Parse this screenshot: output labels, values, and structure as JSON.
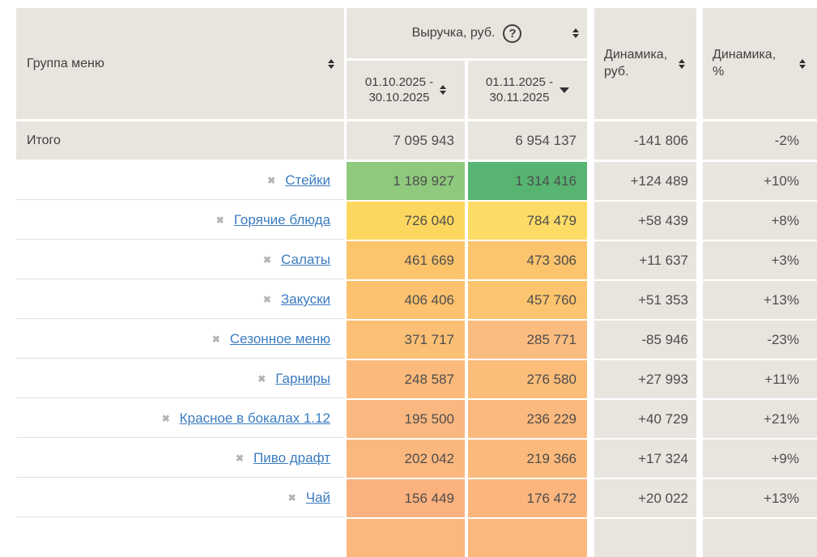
{
  "colors": {
    "header_bg": "#e8e5df",
    "link": "#3b7cc0",
    "value_text": "#4d4d4d",
    "header_text": "#3f3f3f",
    "remove_icon": "#b5b5b5",
    "sort_icon": "#2f2f2f",
    "row_separator": "#e2e0da"
  },
  "header": {
    "group_label": "Группа меню",
    "revenue": {
      "label": "Выручка, руб.",
      "help_icon": "?",
      "periods": [
        {
          "line1": "01.10.2025 -",
          "line2": "30.10.2025",
          "sort": "both"
        },
        {
          "line1": "01.11.2025 -",
          "line2": "30.11.2025",
          "sort": "desc"
        }
      ]
    },
    "dynamics_rub": {
      "line1": "Динамика,",
      "line2": "руб."
    },
    "dynamics_pct": {
      "line1": "Динамика,",
      "line2": "%"
    }
  },
  "totals": {
    "label": "Итого",
    "period1": "7 095 943",
    "period2": "6 954 137",
    "dyn_rub": "-141 806",
    "dyn_pct": "-2%"
  },
  "rows": [
    {
      "label": "Стейки",
      "period1": "1 189 927",
      "period2": "1 314 416",
      "dyn_rub": "+124 489",
      "dyn_pct": "+10%",
      "heat1": "#8fc97e",
      "heat2": "#57b471"
    },
    {
      "label": "Горячие блюда",
      "period1": "726 040",
      "period2": "784 479",
      "dyn_rub": "+58 439",
      "dyn_pct": "+8%",
      "heat1": "#fcd75f",
      "heat2": "#fcdc66"
    },
    {
      "label": "Салаты",
      "period1": "461 669",
      "period2": "473 306",
      "dyn_rub": "+11 637",
      "dyn_pct": "+3%",
      "heat1": "#fcc46b",
      "heat2": "#fcc46c"
    },
    {
      "label": "Закуски",
      "period1": "406 406",
      "period2": "457 760",
      "dyn_rub": "+51 353",
      "dyn_pct": "+13%",
      "heat1": "#fcc26f",
      "heat2": "#fcc46e"
    },
    {
      "label": "Сезонное меню",
      "period1": "371 717",
      "period2": "285 771",
      "dyn_rub": "-85 946",
      "dyn_pct": "-23%",
      "heat1": "#fbbf75",
      "heat2": "#fbbc80"
    },
    {
      "label": "Гарниры",
      "period1": "248 587",
      "period2": "276 580",
      "dyn_rub": "+27 993",
      "dyn_pct": "+11%",
      "heat1": "#fbba7b",
      "heat2": "#fbbd79"
    },
    {
      "label": "Красное в бокалах 1.12",
      "period1": "195 500",
      "period2": "236 229",
      "dyn_rub": "+40 729",
      "dyn_pct": "+21%",
      "heat1": "#fab77f",
      "heat2": "#fbb97e"
    },
    {
      "label": "Пиво драфт",
      "period1": "202 042",
      "period2": "219 366",
      "dyn_rub": "+17 324",
      "dyn_pct": "+9%",
      "heat1": "#fab77e",
      "heat2": "#fbba7b"
    },
    {
      "label": "Чай",
      "period1": "156 449",
      "period2": "176 472",
      "dyn_rub": "+20 022",
      "dyn_pct": "+13%",
      "heat1": "#fcb27e",
      "heat2": "#fcb57d"
    },
    {
      "label": "",
      "period1": "",
      "period2": "",
      "dyn_rub": "",
      "dyn_pct": "",
      "heat1": "#fbb77e",
      "heat2": "#fab87d"
    }
  ]
}
